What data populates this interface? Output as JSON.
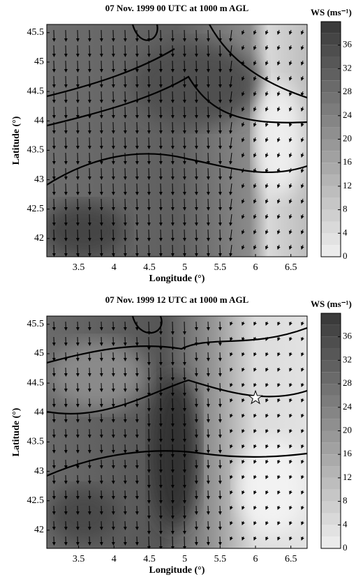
{
  "chart_data": [
    {
      "type": "contour",
      "title": "07 Nov. 1999 00 UTC at 1000 m AGL",
      "xlabel": "Longitude (°)",
      "ylabel": "Latitude (°)",
      "xlim": [
        3.05,
        6.73
      ],
      "xticks": [
        3.5,
        4,
        4.5,
        5,
        5.5,
        6,
        6.5
      ],
      "ylim": [
        41.69,
        45.64
      ],
      "yticks": [
        42,
        42.5,
        43,
        43.5,
        44,
        44.5,
        45,
        45.5
      ],
      "colorbar": {
        "label": "WS (ms⁻¹)",
        "lim": [
          0,
          40
        ],
        "ticks": [
          0,
          4,
          8,
          12,
          16,
          20,
          24,
          28,
          32,
          36
        ]
      }
    },
    {
      "type": "contour",
      "title": "07 Nov. 1999 12 UTC at 1000 m AGL",
      "xlabel": "Longitude (°)",
      "ylabel": "Latitude (°)",
      "xlim": [
        3.05,
        6.73
      ],
      "xticks": [
        3.5,
        4,
        4.5,
        5,
        5.5,
        6,
        6.5
      ],
      "ylim": [
        41.69,
        45.64
      ],
      "yticks": [
        42,
        42.5,
        43,
        43.5,
        44,
        44.5,
        45,
        45.5
      ],
      "colorbar": {
        "label": "WS (ms⁻¹)",
        "lim": [
          0,
          40
        ],
        "ticks": [
          0,
          4,
          8,
          12,
          16,
          20,
          24,
          28,
          32,
          36
        ]
      },
      "marker": {
        "x": 6.0,
        "y": 44.25
      }
    }
  ]
}
